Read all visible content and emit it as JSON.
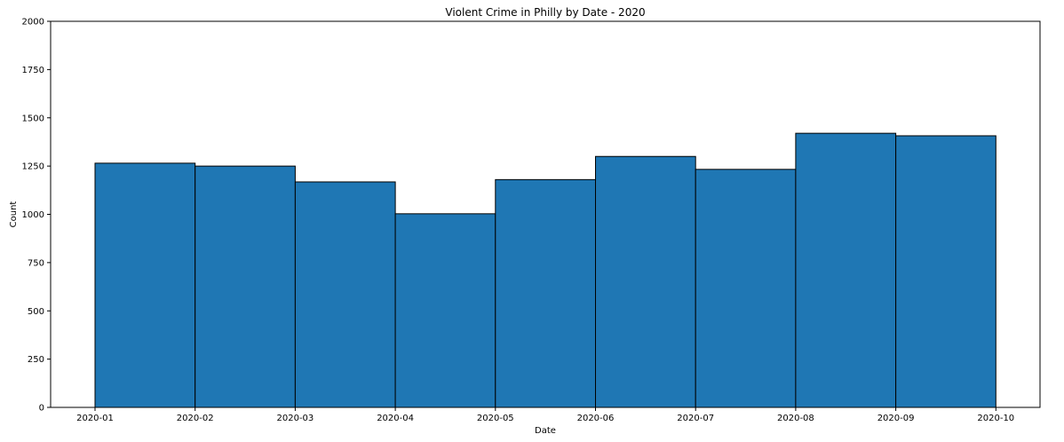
{
  "chart_data": {
    "type": "bar",
    "title": "Violent Crime in Philly by Date - 2020",
    "xlabel": "Date",
    "ylabel": "Count",
    "x_ticks": [
      "2020-01",
      "2020-02",
      "2020-03",
      "2020-04",
      "2020-05",
      "2020-06",
      "2020-07",
      "2020-08",
      "2020-09",
      "2020-10"
    ],
    "y_ticks": [
      0,
      250,
      500,
      750,
      1000,
      1250,
      1500,
      1750,
      2000
    ],
    "ylim": [
      0,
      2000
    ],
    "bins": [
      {
        "start": "2020-01",
        "end": "2020-02",
        "value": 1265
      },
      {
        "start": "2020-02",
        "end": "2020-03",
        "value": 1250
      },
      {
        "start": "2020-03",
        "end": "2020-04",
        "value": 1168
      },
      {
        "start": "2020-04",
        "end": "2020-05",
        "value": 1003
      },
      {
        "start": "2020-05",
        "end": "2020-06",
        "value": 1180
      },
      {
        "start": "2020-06",
        "end": "2020-07",
        "value": 1300
      },
      {
        "start": "2020-07",
        "end": "2020-08",
        "value": 1233
      },
      {
        "start": "2020-08",
        "end": "2020-09",
        "value": 1420
      },
      {
        "start": "2020-09",
        "end": "2020-10",
        "value": 1407
      }
    ],
    "bar_color": "#1f77b4",
    "edge_color": "#000000",
    "grid": false,
    "legend": "none"
  }
}
